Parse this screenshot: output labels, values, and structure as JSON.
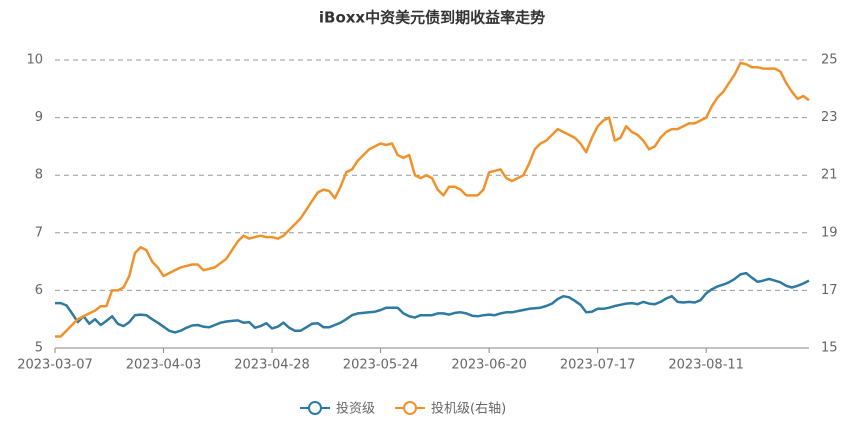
{
  "chart_data": {
    "type": "line",
    "title": "iBoxx中资美元债到期收益率走势",
    "categories": [
      "2023-03-07",
      null,
      null,
      null,
      null,
      null,
      null,
      null,
      null,
      null,
      null,
      null,
      null,
      null,
      null,
      null,
      null,
      null,
      null,
      "2023-04-03",
      null,
      null,
      null,
      null,
      null,
      null,
      null,
      null,
      null,
      null,
      null,
      null,
      null,
      null,
      null,
      null,
      null,
      null,
      "2023-04-28",
      null,
      null,
      null,
      null,
      null,
      null,
      null,
      null,
      null,
      null,
      null,
      null,
      null,
      null,
      null,
      null,
      null,
      null,
      "2023-05-24",
      null,
      null,
      null,
      null,
      null,
      null,
      null,
      null,
      null,
      null,
      null,
      null,
      null,
      null,
      null,
      null,
      null,
      null,
      "2023-06-20",
      null,
      null,
      null,
      null,
      null,
      null,
      null,
      null,
      null,
      null,
      null,
      null,
      null,
      null,
      null,
      null,
      null,
      null,
      "2023-07-17",
      null,
      null,
      null,
      null,
      null,
      null,
      null,
      null,
      null,
      null,
      null,
      null,
      null,
      null,
      null,
      null,
      null,
      null,
      "2023-08-11",
      null,
      null,
      null,
      null,
      null,
      null,
      null,
      null,
      null,
      null,
      null,
      null,
      null,
      null,
      null,
      null,
      null,
      null
    ],
    "series": [
      {
        "name": "投资级",
        "color": "#2e7aa1",
        "values": [
          5.78,
          5.78,
          5.74,
          5.6,
          5.45,
          5.55,
          5.42,
          5.5,
          5.4,
          5.47,
          5.55,
          5.42,
          5.38,
          5.45,
          5.57,
          5.58,
          5.57,
          5.5,
          5.44,
          5.37,
          5.3,
          5.27,
          5.3,
          5.35,
          5.39,
          5.4,
          5.37,
          5.36,
          5.4,
          5.44,
          5.46,
          5.47,
          5.48,
          5.44,
          5.45,
          5.35,
          5.38,
          5.43,
          5.34,
          5.37,
          5.44,
          5.35,
          5.3,
          5.3,
          5.36,
          5.42,
          5.43,
          5.36,
          5.36,
          5.4,
          5.44,
          5.5,
          5.57,
          5.6,
          5.61,
          5.62,
          5.63,
          5.66,
          5.7,
          5.7,
          5.7,
          5.6,
          5.55,
          5.53,
          5.57,
          5.57,
          5.57,
          5.6,
          5.6,
          5.58,
          5.61,
          5.62,
          5.6,
          5.56,
          5.55,
          5.57,
          5.58,
          5.57,
          5.6,
          5.62,
          5.62,
          5.64,
          5.66,
          5.68,
          5.69,
          5.7,
          5.73,
          5.77,
          5.85,
          5.9,
          5.88,
          5.82,
          5.75,
          5.62,
          5.63,
          5.68,
          5.68,
          5.7,
          5.73,
          5.75,
          5.77,
          5.78,
          5.76,
          5.8,
          5.77,
          5.76,
          5.8,
          5.86,
          5.9,
          5.8,
          5.79,
          5.8,
          5.79,
          5.83,
          5.95,
          6.02,
          6.07,
          6.1,
          6.14,
          6.2,
          6.28,
          6.3,
          6.22,
          6.15,
          6.17,
          6.2,
          6.17,
          6.14,
          6.08,
          6.05,
          6.08,
          6.12,
          6.17
        ]
      },
      {
        "name": "投机级(右轴)",
        "color": "#f0922c",
        "axis": "y2",
        "values": [
          15.4,
          15.4,
          15.6,
          15.8,
          16.0,
          16.1,
          16.2,
          16.3,
          16.45,
          16.45,
          17.0,
          17.0,
          17.1,
          17.5,
          18.3,
          18.5,
          18.4,
          18.0,
          17.8,
          17.5,
          17.6,
          17.7,
          17.8,
          17.85,
          17.9,
          17.9,
          17.7,
          17.75,
          17.8,
          17.95,
          18.1,
          18.4,
          18.7,
          18.9,
          18.8,
          18.85,
          18.9,
          18.85,
          18.85,
          18.8,
          18.9,
          19.1,
          19.3,
          19.5,
          19.8,
          20.1,
          20.4,
          20.5,
          20.45,
          20.2,
          20.6,
          21.1,
          21.2,
          21.5,
          21.7,
          21.9,
          22.0,
          22.1,
          22.05,
          22.1,
          21.7,
          21.6,
          21.7,
          21.0,
          20.9,
          21.0,
          20.9,
          20.5,
          20.3,
          20.6,
          20.6,
          20.5,
          20.3,
          20.3,
          20.3,
          20.5,
          21.1,
          21.15,
          21.2,
          20.9,
          20.8,
          20.9,
          21.0,
          21.4,
          21.9,
          22.1,
          22.2,
          22.4,
          22.6,
          22.5,
          22.4,
          22.3,
          22.1,
          21.8,
          22.3,
          22.7,
          22.9,
          23.0,
          22.2,
          22.3,
          22.7,
          22.5,
          22.4,
          22.2,
          21.9,
          22.0,
          22.3,
          22.5,
          22.6,
          22.6,
          22.7,
          22.8,
          22.8,
          22.9,
          23.0,
          23.4,
          23.7,
          23.9,
          24.2,
          24.5,
          24.9,
          24.85,
          24.75,
          24.75,
          24.7,
          24.7,
          24.7,
          24.6,
          24.2,
          23.9,
          23.65,
          23.75,
          23.6
        ]
      }
    ],
    "ylim": [
      5,
      10
    ],
    "yticks": [
      5,
      6,
      7,
      8,
      9,
      10
    ],
    "y2lim": [
      15,
      25
    ],
    "y2ticks": [
      15,
      17,
      19,
      21,
      23,
      25
    ],
    "grid": true
  }
}
